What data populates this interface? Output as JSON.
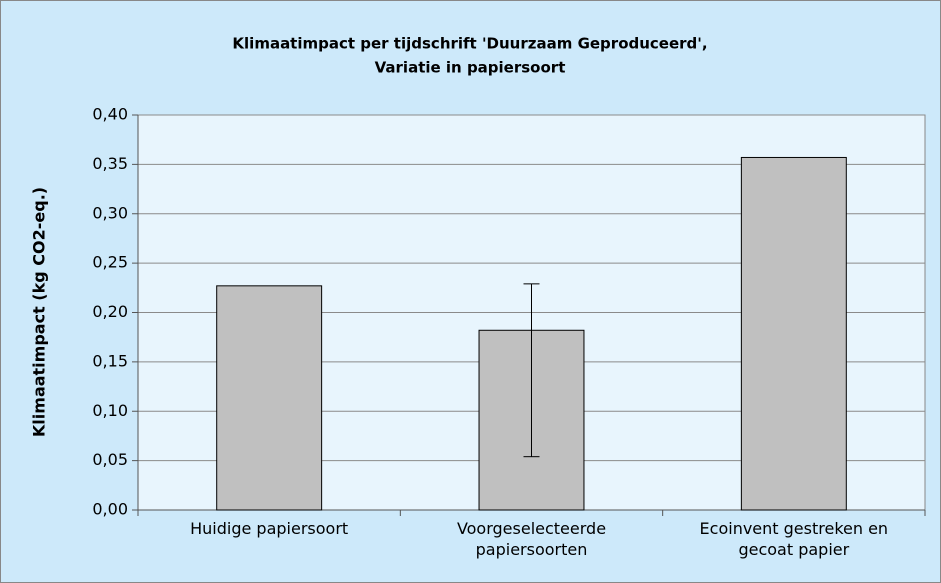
{
  "chart_data": {
    "type": "bar",
    "title": [
      "Klimaatimpact per tijdschrift 'Duurzaam Geproduceerd',",
      "Variatie in papiersoort"
    ],
    "y_label": "Klimaatimpact (kg CO2-eq.)",
    "categories": [
      "Huidige papiersoort",
      "Voorgeselecteerde papiersoorten",
      "Ecoinvent gestreken en gecoat papier"
    ],
    "values": [
      0.227,
      0.182,
      0.357
    ],
    "error_range": [
      null,
      [
        0.054,
        0.229
      ],
      null
    ],
    "color": "#c0c0c0",
    "ylim": [
      0,
      0.4
    ],
    "yticks": [
      {
        "value": 0,
        "label": "0,00"
      },
      {
        "value": 0.05,
        "label": "0,05"
      },
      {
        "value": 0.1,
        "label": "0,10"
      },
      {
        "value": 0.15,
        "label": "0,15"
      },
      {
        "value": 0.2,
        "label": "0,20"
      },
      {
        "value": 0.25,
        "label": "0,25"
      },
      {
        "value": 0.3,
        "label": "0,30"
      },
      {
        "value": 0.35,
        "label": "0,35"
      },
      {
        "value": 0.4,
        "label": "0,40"
      }
    ],
    "grid": true
  }
}
